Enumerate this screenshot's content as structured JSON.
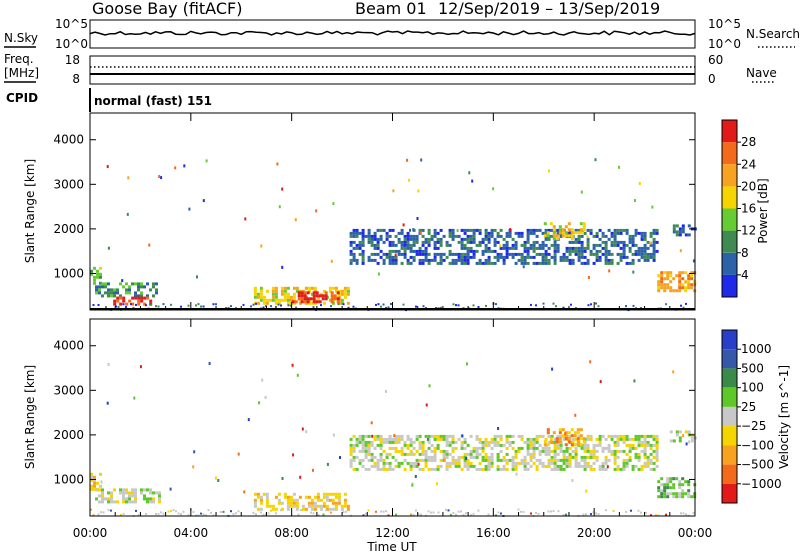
{
  "header": {
    "station": "Goose Bay (fitACF)",
    "beam": "Beam 01",
    "date_range": "12/Sep/2019 – 13/Sep/2019",
    "cpid_label": "CPID",
    "cpid_value": "normal (fast) 151"
  },
  "nsky_panel": {
    "left_label": "N.Sky",
    "left_top_tick": "10^5",
    "left_bottom_tick": "10^0",
    "right_top_tick": "10^5",
    "right_bottom_tick": "10^0",
    "right_label": "N.Search"
  },
  "freq_panel": {
    "left_label_1": "Freq.",
    "left_label_2": "[MHz]",
    "left_top_tick": "18",
    "left_bottom_tick": "8",
    "right_top_tick": "60",
    "right_bottom_tick": "0",
    "right_label": "Nave"
  },
  "chart_data": [
    {
      "type": "heatmap",
      "title": "",
      "xlabel": "Time UT",
      "ylabel": "Slant Range [km]",
      "x_ticks": [
        "00:00",
        "04:00",
        "08:00",
        "12:00",
        "16:00",
        "20:00",
        "00:00"
      ],
      "xlim_hours": [
        0,
        24
      ],
      "y_ticks": [
        1000,
        2000,
        3000,
        4000
      ],
      "ylim": [
        180,
        4600
      ],
      "colorbar": {
        "label": "Power [dB]",
        "ticks": [
          "4",
          "8",
          "12",
          "16",
          "20",
          "24",
          "28"
        ],
        "colors": [
          "#1e2ae8",
          "#2c62a8",
          "#3e8a52",
          "#66cc33",
          "#f5d400",
          "#f7a220",
          "#f26a1a",
          "#e21a1a"
        ]
      },
      "echo_regions": [
        {
          "t_start": 0.0,
          "t_end": 0.4,
          "r_start": 800,
          "r_end": 1150,
          "level": 3
        },
        {
          "t_start": 0.2,
          "t_end": 2.8,
          "r_start": 500,
          "r_end": 800,
          "level": 2
        },
        {
          "t_start": 0.8,
          "t_end": 2.4,
          "r_start": 300,
          "r_end": 480,
          "level": 7
        },
        {
          "t_start": 6.5,
          "t_end": 10.3,
          "r_start": 300,
          "r_end": 700,
          "level": 4
        },
        {
          "t_start": 8.0,
          "t_end": 9.8,
          "r_start": 380,
          "r_end": 600,
          "level": 7
        },
        {
          "t_start": 10.3,
          "t_end": 22.5,
          "r_start": 1200,
          "r_end": 2000,
          "level": 1
        },
        {
          "t_start": 18.0,
          "t_end": 19.6,
          "r_start": 1800,
          "r_end": 2150,
          "level": 4
        },
        {
          "t_start": 22.5,
          "t_end": 24.0,
          "r_start": 600,
          "r_end": 1050,
          "level": 5
        },
        {
          "t_start": 23.0,
          "t_end": 24.0,
          "r_start": 1850,
          "r_end": 2100,
          "level": 1
        }
      ]
    },
    {
      "type": "heatmap",
      "title": "",
      "xlabel": "Time UT",
      "ylabel": "Slant Range [km]",
      "x_ticks": [
        "00:00",
        "04:00",
        "08:00",
        "12:00",
        "16:00",
        "20:00",
        "00:00"
      ],
      "xlim_hours": [
        0,
        24
      ],
      "y_ticks": [
        1000,
        2000,
        3000,
        4000
      ],
      "ylim": [
        180,
        4600
      ],
      "colorbar": {
        "label": "Velocity [m s^-1]",
        "ticks": [
          "1000",
          "500",
          "100",
          "25",
          "−25",
          "−100",
          "−500",
          "−1000"
        ],
        "colors": [
          "#2a3fc8",
          "#3558a8",
          "#3c8a4a",
          "#5ec82a",
          "#c8c8c8",
          "#f5d400",
          "#f7a220",
          "#f26a1a",
          "#e21a1a"
        ]
      },
      "echo_regions": [
        {
          "t_start": 0.0,
          "t_end": 0.4,
          "r_start": 800,
          "r_end": 1150,
          "level": 5
        },
        {
          "t_start": 0.2,
          "t_end": 2.8,
          "r_start": 500,
          "r_end": 800,
          "level": 4
        },
        {
          "t_start": 6.5,
          "t_end": 10.3,
          "r_start": 300,
          "r_end": 700,
          "level": 5
        },
        {
          "t_start": 10.3,
          "t_end": 22.5,
          "r_start": 1200,
          "r_end": 2000,
          "level": 4
        },
        {
          "t_start": 18.0,
          "t_end": 19.6,
          "r_start": 1800,
          "r_end": 2150,
          "level": 6
        },
        {
          "t_start": 22.5,
          "t_end": 24.0,
          "r_start": 600,
          "r_end": 1050,
          "level": 3
        },
        {
          "t_start": 23.0,
          "t_end": 24.0,
          "r_start": 1850,
          "r_end": 2100,
          "level": 4
        }
      ]
    }
  ]
}
